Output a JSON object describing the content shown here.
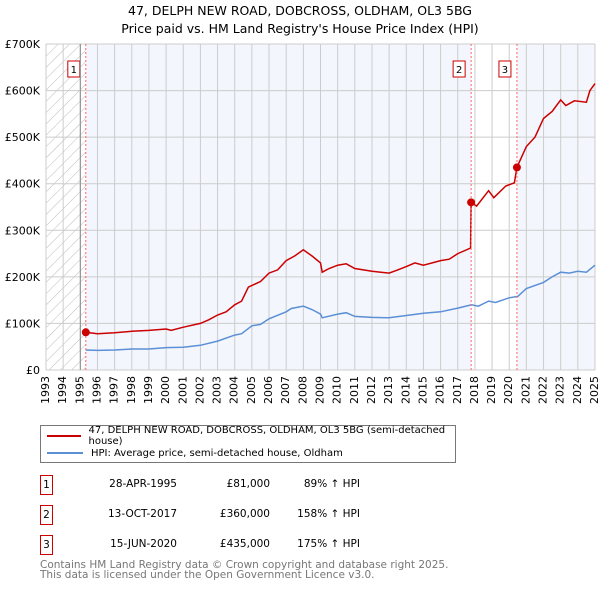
{
  "chart_data": {
    "type": "line",
    "title": "47, DELPH NEW ROAD, DOBCROSS, OLDHAM, OL3 5BG",
    "subtitle": "Price paid vs. HM Land Registry's House Price Index (HPI)",
    "xlim": [
      1993,
      2025
    ],
    "ylim": [
      0,
      700000
    ],
    "yticks": [
      0,
      100000,
      200000,
      300000,
      400000,
      500000,
      600000,
      700000
    ],
    "ytick_labels": [
      "£0",
      "£100K",
      "£200K",
      "£300K",
      "£400K",
      "£500K",
      "£600K",
      "£700K"
    ],
    "xticks": [
      "1993",
      "1994",
      "1995",
      "1996",
      "1997",
      "1998",
      "1999",
      "2000",
      "2001",
      "2002",
      "2003",
      "2004",
      "2005",
      "2006",
      "2007",
      "2008",
      "2009",
      "2010",
      "2011",
      "2012",
      "2013",
      "2014",
      "2015",
      "2016",
      "2017",
      "2018",
      "2019",
      "2020",
      "2021",
      "2022",
      "2023",
      "2024",
      "2025"
    ],
    "grid": true,
    "series": [
      {
        "name": "47, DELPH NEW ROAD, DOBCROSS, OLDHAM, OL3 5BG (semi-detached house)",
        "color": "#cc0000",
        "x": [
          1995.3,
          1996,
          1997,
          1998,
          1999,
          2000,
          2000.3,
          2001,
          2002,
          2002.5,
          2003,
          2003.5,
          2004,
          2004.4,
          2004.8,
          2005.5,
          2006,
          2006.5,
          2007,
          2007.5,
          2008,
          2008.5,
          2009,
          2009.1,
          2009.5,
          2010,
          2010.5,
          2011,
          2012,
          2013,
          2013.5,
          2014,
          2014.5,
          2015,
          2016,
          2016.5,
          2017,
          2017.75,
          2017.78,
          2018.1,
          2018.8,
          2019.1,
          2019.8,
          2020.3,
          2020.45,
          2021,
          2021.5,
          2022,
          2022.5,
          2023,
          2023.3,
          2023.8,
          2024.5,
          2024.7,
          2025
        ],
        "y": [
          81000,
          78000,
          80000,
          83000,
          85000,
          88000,
          85000,
          92000,
          100000,
          108000,
          118000,
          125000,
          140000,
          148000,
          178000,
          190000,
          208000,
          215000,
          235000,
          245000,
          258000,
          245000,
          230000,
          210000,
          218000,
          225000,
          228000,
          218000,
          212000,
          208000,
          215000,
          222000,
          230000,
          225000,
          235000,
          238000,
          250000,
          262000,
          360000,
          352000,
          385000,
          370000,
          395000,
          402000,
          435000,
          480000,
          500000,
          540000,
          555000,
          580000,
          568000,
          578000,
          575000,
          600000,
          615000
        ]
      },
      {
        "name": "HPI: Average price, semi-detached house, Oldham",
        "color": "#5b8fd6",
        "x": [
          1995.3,
          1996,
          1997,
          1998,
          1999,
          2000,
          2001,
          2002,
          2003,
          2004,
          2004.4,
          2005,
          2005.5,
          2006,
          2007,
          2007.3,
          2008,
          2008.5,
          2009,
          2009.1,
          2010,
          2010.5,
          2011,
          2012,
          2013,
          2014,
          2015,
          2016,
          2017,
          2017.8,
          2018.2,
          2018.8,
          2019.2,
          2020,
          2020.5,
          2021,
          2022,
          2022.5,
          2023,
          2023.5,
          2024,
          2024.5,
          2025
        ],
        "y": [
          43000,
          42000,
          43000,
          45000,
          45000,
          48000,
          49000,
          53000,
          62000,
          75000,
          78000,
          95000,
          98000,
          110000,
          125000,
          132000,
          137000,
          130000,
          120000,
          112000,
          120000,
          123000,
          115000,
          113000,
          112000,
          117000,
          122000,
          125000,
          133000,
          140000,
          137000,
          148000,
          145000,
          155000,
          158000,
          175000,
          188000,
          200000,
          210000,
          208000,
          212000,
          210000,
          225000
        ]
      }
    ],
    "sales": [
      {
        "label": "1",
        "x": 2017.0,
        "date": "28-APR-1995",
        "price": "£81,000",
        "hpi": "89% ↑ HPI",
        "year": 1995.32,
        "value": 81000
      },
      {
        "label": "2",
        "date": "13-OCT-2017",
        "price": "£360,000",
        "hpi": "158% ↑ HPI",
        "year": 2017.78,
        "value": 360000
      },
      {
        "label": "3",
        "date": "15-JUN-2020",
        "price": "£435,000",
        "hpi": "175% ↑ HPI",
        "year": 2020.45,
        "value": 435000
      }
    ]
  },
  "footer": {
    "line1": "Contains HM Land Registry data © Crown copyright and database right 2025.",
    "line2": "This data is licensed under the Open Government Licence v3.0."
  }
}
